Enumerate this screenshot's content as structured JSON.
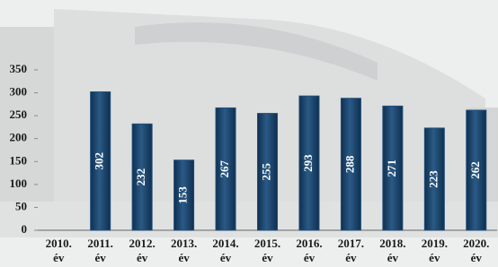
{
  "chart_data": {
    "type": "bar",
    "categories": [
      "2010. év",
      "2011. év",
      "2012. év",
      "2013. év",
      "2014. év",
      "2015. év",
      "2016. év",
      "2017. év",
      "2018. év",
      "2019. év",
      "2020. év"
    ],
    "values": [
      null,
      302,
      232,
      153,
      267,
      255,
      293,
      288,
      271,
      223,
      262
    ],
    "color": "#1f4e79",
    "ylim": [
      0,
      350
    ],
    "yticks": [
      0,
      50,
      100,
      150,
      200,
      250,
      300,
      350
    ],
    "grid": false
  }
}
